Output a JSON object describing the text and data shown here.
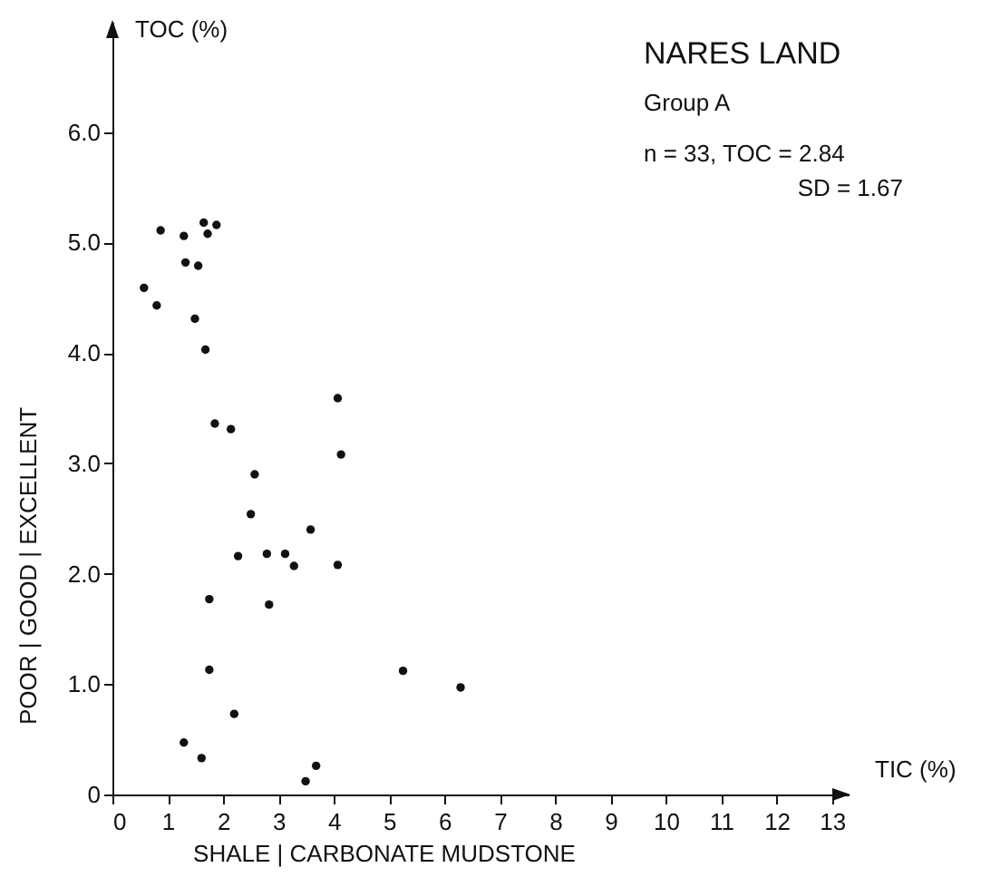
{
  "chart_data": {
    "type": "scatter",
    "title": "NARES LAND",
    "subtitle": "Group A",
    "xlabel": "TIC (%)",
    "ylabel": "TOC (%)",
    "annotations": [
      "n = 33, TOC = 2.84",
      "SD = 1.67",
      "POOR | GOOD | EXCELLENT",
      "SHALE | CARBONATE MUDSTONE"
    ],
    "xlim": [
      0,
      13.3
    ],
    "ylim": [
      0,
      7
    ],
    "xticks": [
      0,
      1,
      2,
      3,
      4,
      5,
      6,
      7,
      8,
      9,
      10,
      11,
      12,
      13
    ],
    "yticks": [
      0,
      {
        "value": 1,
        "label": "1.0"
      },
      {
        "value": 2,
        "label": "2.0"
      },
      {
        "value": 3,
        "label": "3.0"
      },
      {
        "value": 4,
        "label": "4.0"
      },
      {
        "value": 5,
        "label": "5.0"
      },
      {
        "value": 6,
        "label": "6.0"
      }
    ],
    "grid": false,
    "marker": "circle",
    "series": [
      {
        "color": "#111111",
        "x": [
          0.87,
          1.29,
          1.65,
          1.88,
          1.72,
          1.32,
          1.55,
          0.57,
          0.8,
          1.49,
          1.68,
          4.07,
          1.85,
          2.14,
          4.13,
          2.57,
          2.5,
          3.58,
          2.27,
          2.79,
          3.12,
          3.28,
          4.07,
          1.75,
          2.83,
          1.75,
          5.25,
          6.29,
          2.2,
          1.29,
          1.61,
          3.68,
          3.49
        ],
        "values": [
          5.11,
          5.06,
          5.18,
          5.16,
          5.08,
          4.82,
          4.79,
          4.59,
          4.43,
          4.31,
          4.03,
          3.59,
          3.36,
          3.31,
          3.08,
          2.9,
          2.54,
          2.4,
          2.16,
          2.18,
          2.18,
          2.07,
          2.08,
          1.77,
          1.72,
          1.13,
          1.12,
          0.97,
          0.73,
          0.47,
          0.33,
          0.26,
          0.12
        ]
      }
    ]
  }
}
